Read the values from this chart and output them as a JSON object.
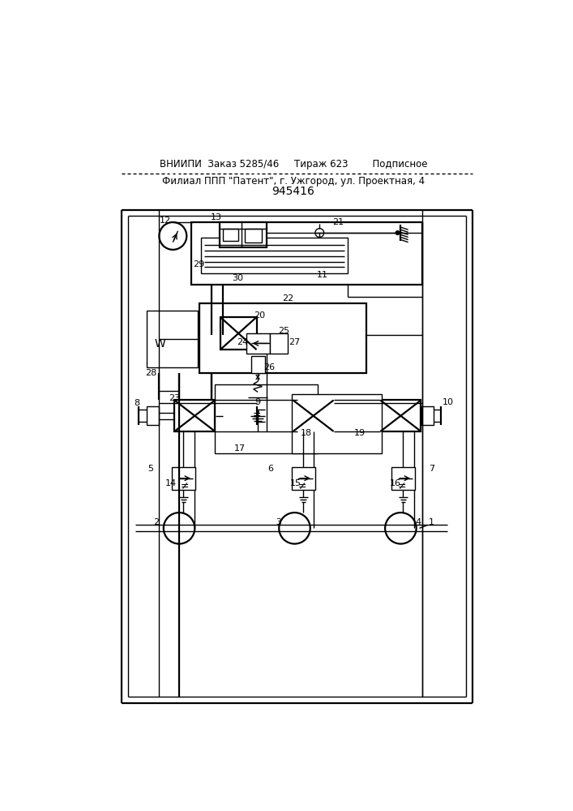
{
  "title": "945416",
  "footer_line1": "ВНИИПИ  Заказ 5285/46     Тираж 623        Подписное",
  "footer_line2": "Филиал ППП \"Патент\", г. Ужгород, ул. Проектная, 4",
  "bg_color": "#ffffff",
  "line_color": "#000000",
  "fig_width": 7.07,
  "fig_height": 10.0
}
